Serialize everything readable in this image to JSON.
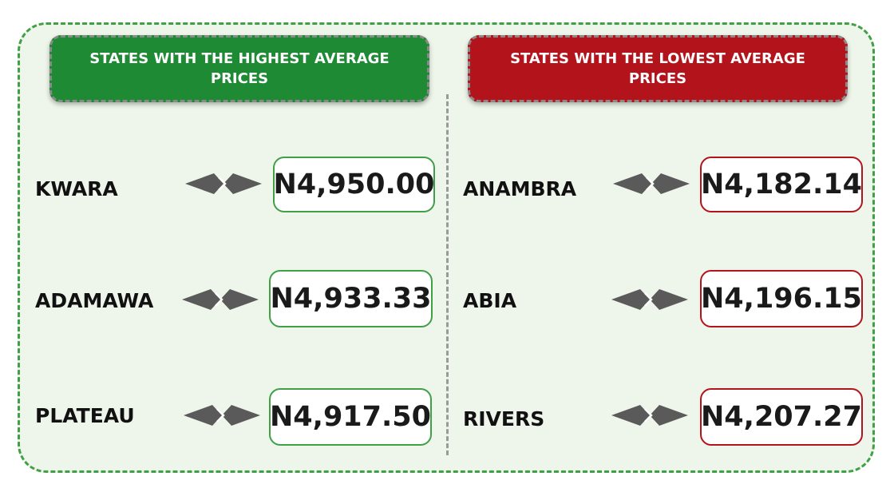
{
  "highest": {
    "title": "STATES WITH THE HIGHEST AVERAGE PRICES",
    "accent": "#1e8a33",
    "rows": [
      {
        "state": "KWARA",
        "price": "N4,950.00"
      },
      {
        "state": "ADAMAWA",
        "price": "N4,933.33"
      },
      {
        "state": "PLATEAU",
        "price": "N4,917.50"
      }
    ]
  },
  "lowest": {
    "title": "STATES WITH THE LOWEST AVERAGE PRICES",
    "accent": "#b3141c",
    "rows": [
      {
        "state": "ANAMBRA",
        "price": "N4,182.14"
      },
      {
        "state": "ABIA",
        "price": "N4,196.15"
      },
      {
        "state": "RIVERS",
        "price": "N4,207.27"
      }
    ]
  },
  "icons": {
    "connector": "double-arrow-icon"
  }
}
